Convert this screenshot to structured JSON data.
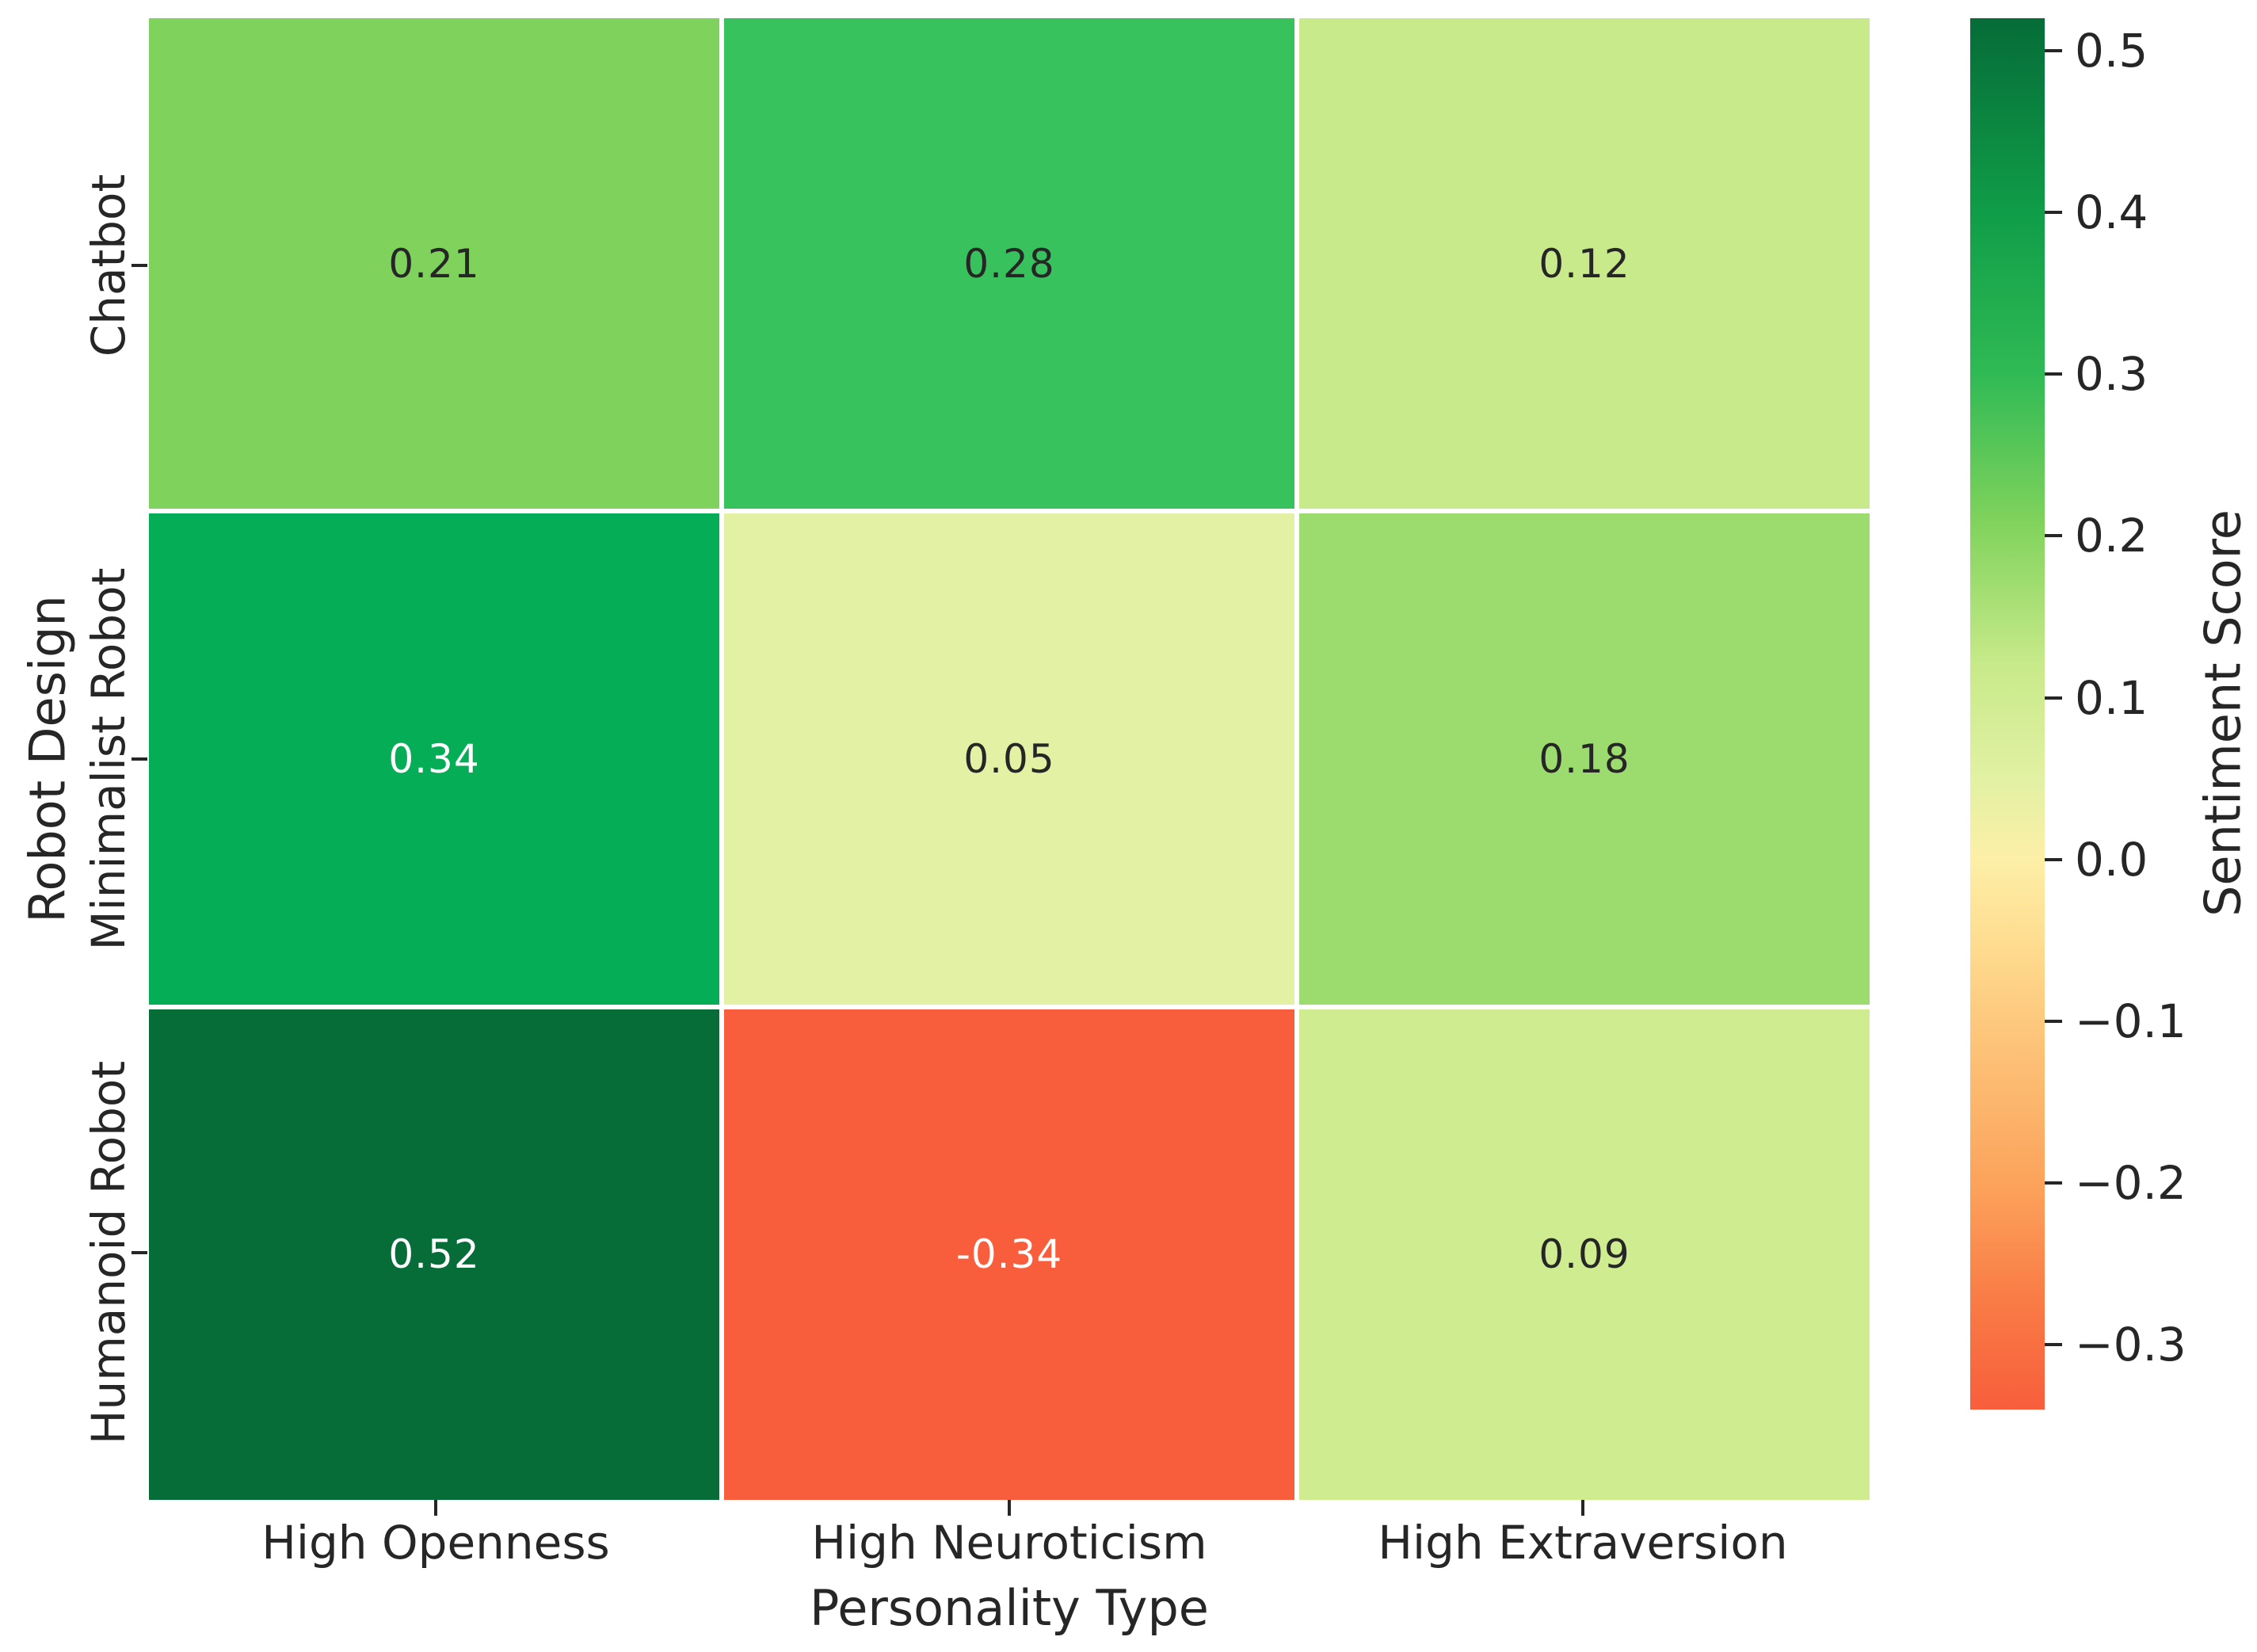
{
  "background": "#ffffff",
  "text_color": "#262626",
  "chart_data": {
    "type": "heatmap",
    "title": "",
    "xlabel": "Personality Type",
    "ylabel": "Robot Design",
    "x_categories": [
      "High Openness",
      "High Neuroticism",
      "High Extraversion"
    ],
    "y_categories": [
      "Chatbot",
      "Minimalist Robot",
      "Humanoid Robot"
    ],
    "values": [
      [
        0.21,
        0.28,
        0.12
      ],
      [
        0.34,
        0.05,
        0.18
      ],
      [
        0.52,
        -0.34,
        0.09
      ]
    ],
    "annotations": [
      [
        "0.21",
        "0.28",
        "0.12"
      ],
      [
        "0.34",
        "0.05",
        "0.18"
      ],
      [
        "0.52",
        "-0.34",
        "0.09"
      ]
    ],
    "cell_colors": [
      [
        "#7fd25c",
        "#37c25d",
        "#c8ea8a"
      ],
      [
        "#04ad56",
        "#e3f1a4",
        "#9cdb6d"
      ],
      [
        "#066c38",
        "#f95e3c",
        "#cfec90"
      ]
    ],
    "cell_text_colors": [
      [
        "#262626",
        "#262626",
        "#262626"
      ],
      [
        "#ffffff",
        "#262626",
        "#262626"
      ],
      [
        "#ffffff",
        "#ffffff",
        "#262626"
      ]
    ],
    "grid": false,
    "colormap": "RdYlGn",
    "colorbar": {
      "label": "Sentiment Score",
      "vmin": -0.34,
      "vmax": 0.52,
      "ticks": [
        {
          "value": 0.5,
          "label": "0.5"
        },
        {
          "value": 0.4,
          "label": "0.4"
        },
        {
          "value": 0.3,
          "label": "0.3"
        },
        {
          "value": 0.2,
          "label": "0.2"
        },
        {
          "value": 0.1,
          "label": "0.1"
        },
        {
          "value": 0.0,
          "label": "0.0"
        },
        {
          "value": -0.1,
          "label": "−0.1"
        },
        {
          "value": -0.2,
          "label": "−0.2"
        },
        {
          "value": -0.3,
          "label": "−0.3"
        }
      ],
      "gradient_stops": [
        {
          "pos": 0,
          "color": "#066c38"
        },
        {
          "pos": 14,
          "color": "#109d48"
        },
        {
          "pos": 25.6,
          "color": "#30ba55"
        },
        {
          "pos": 36,
          "color": "#7fd25c"
        },
        {
          "pos": 46.5,
          "color": "#c8ea8a"
        },
        {
          "pos": 55,
          "color": "#e3f1a4"
        },
        {
          "pos": 60.5,
          "color": "#fdefa7"
        },
        {
          "pos": 66,
          "color": "#fede92"
        },
        {
          "pos": 72,
          "color": "#fdc97e"
        },
        {
          "pos": 84,
          "color": "#fca25b"
        },
        {
          "pos": 92,
          "color": "#f97c46"
        },
        {
          "pos": 100,
          "color": "#f85e3c"
        }
      ]
    }
  }
}
